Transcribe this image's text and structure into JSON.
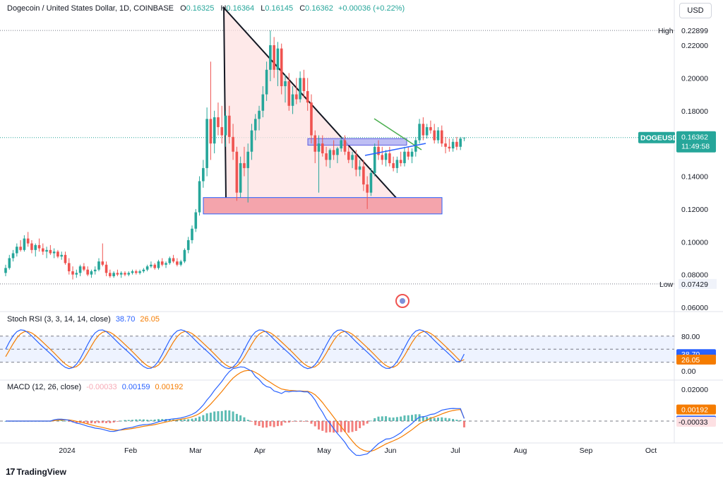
{
  "header": {
    "title": "Dogecoin / United States Dollar, 1D, COINBASE",
    "open_label": "O",
    "open": "0.16325",
    "high_label": "H",
    "high": "0.16364",
    "low_label": "L",
    "low": "0.16145",
    "close_label": "C",
    "close": "0.16362",
    "change": "+0.00036 (+0.22%)"
  },
  "currency_button": "USD",
  "brand": "TradingView",
  "brand_logo": "17",
  "chart_data": {
    "type": "candlestick",
    "symbol": "DOGEUSD",
    "exchange": "COINBASE",
    "interval": "1D",
    "x_labels": [
      "2024",
      "Feb",
      "Mar",
      "Apr",
      "May",
      "Jun",
      "Jul",
      "Aug",
      "Sep",
      "Oct"
    ],
    "price_ticks": [
      "0.22000",
      "0.20000",
      "0.18000",
      "0.14000",
      "0.12000",
      "0.10000",
      "0.08000",
      "0.06000"
    ],
    "ylim": [
      0.057,
      0.24
    ],
    "high": {
      "label": "High",
      "value": "0.22899",
      "num": 0.22899
    },
    "low": {
      "label": "Low",
      "value": "0.07429",
      "num": 0.07429
    },
    "last": {
      "symbol_label": "DOGEUSD",
      "price": "0.16362",
      "num": 0.16362,
      "countdown": "11:49:58",
      "color": "#26a69a"
    },
    "candles_ohlc": [
      [
        0.081,
        0.086,
        0.079,
        0.084
      ],
      [
        0.084,
        0.092,
        0.083,
        0.09
      ],
      [
        0.09,
        0.095,
        0.088,
        0.093
      ],
      [
        0.093,
        0.099,
        0.091,
        0.097
      ],
      [
        0.097,
        0.101,
        0.094,
        0.095
      ],
      [
        0.095,
        0.104,
        0.094,
        0.102
      ],
      [
        0.102,
        0.106,
        0.097,
        0.099
      ],
      [
        0.099,
        0.101,
        0.093,
        0.095
      ],
      [
        0.095,
        0.099,
        0.091,
        0.098
      ],
      [
        0.098,
        0.102,
        0.094,
        0.096
      ],
      [
        0.096,
        0.099,
        0.092,
        0.094
      ],
      [
        0.094,
        0.097,
        0.09,
        0.095
      ],
      [
        0.095,
        0.098,
        0.092,
        0.093
      ],
      [
        0.093,
        0.096,
        0.09,
        0.094
      ],
      [
        0.094,
        0.095,
        0.09,
        0.091
      ],
      [
        0.091,
        0.094,
        0.089,
        0.092
      ],
      [
        0.092,
        0.094,
        0.086,
        0.087
      ],
      [
        0.087,
        0.09,
        0.08,
        0.082
      ],
      [
        0.082,
        0.085,
        0.077,
        0.08
      ],
      [
        0.08,
        0.083,
        0.078,
        0.081
      ],
      [
        0.081,
        0.086,
        0.079,
        0.085
      ],
      [
        0.085,
        0.087,
        0.082,
        0.083
      ],
      [
        0.083,
        0.085,
        0.079,
        0.08
      ],
      [
        0.08,
        0.083,
        0.078,
        0.082
      ],
      [
        0.082,
        0.085,
        0.08,
        0.083
      ],
      [
        0.083,
        0.09,
        0.082,
        0.088
      ],
      [
        0.088,
        0.099,
        0.085,
        0.086
      ],
      [
        0.086,
        0.088,
        0.079,
        0.081
      ],
      [
        0.081,
        0.083,
        0.078,
        0.079
      ],
      [
        0.079,
        0.082,
        0.078,
        0.081
      ],
      [
        0.081,
        0.083,
        0.079,
        0.08
      ],
      [
        0.08,
        0.082,
        0.078,
        0.081
      ],
      [
        0.081,
        0.082,
        0.079,
        0.08
      ],
      [
        0.08,
        0.082,
        0.079,
        0.081
      ],
      [
        0.081,
        0.083,
        0.08,
        0.082
      ],
      [
        0.082,
        0.083,
        0.08,
        0.081
      ],
      [
        0.081,
        0.083,
        0.08,
        0.082
      ],
      [
        0.082,
        0.084,
        0.081,
        0.083
      ],
      [
        0.083,
        0.086,
        0.082,
        0.085
      ],
      [
        0.085,
        0.088,
        0.084,
        0.086
      ],
      [
        0.086,
        0.087,
        0.083,
        0.084
      ],
      [
        0.084,
        0.089,
        0.083,
        0.088
      ],
      [
        0.088,
        0.09,
        0.085,
        0.086
      ],
      [
        0.086,
        0.088,
        0.084,
        0.087
      ],
      [
        0.087,
        0.091,
        0.086,
        0.09
      ],
      [
        0.09,
        0.092,
        0.087,
        0.088
      ],
      [
        0.088,
        0.09,
        0.085,
        0.086
      ],
      [
        0.086,
        0.089,
        0.085,
        0.088
      ],
      [
        0.088,
        0.096,
        0.087,
        0.095
      ],
      [
        0.095,
        0.103,
        0.093,
        0.101
      ],
      [
        0.101,
        0.11,
        0.099,
        0.108
      ],
      [
        0.108,
        0.12,
        0.106,
        0.118
      ],
      [
        0.118,
        0.14,
        0.116,
        0.137
      ],
      [
        0.137,
        0.15,
        0.133,
        0.145
      ],
      [
        0.145,
        0.182,
        0.14,
        0.175
      ],
      [
        0.175,
        0.21,
        0.15,
        0.16
      ],
      [
        0.16,
        0.18,
        0.154,
        0.176
      ],
      [
        0.176,
        0.185,
        0.165,
        0.17
      ],
      [
        0.17,
        0.183,
        0.16,
        0.165
      ],
      [
        0.165,
        0.18,
        0.158,
        0.177
      ],
      [
        0.177,
        0.183,
        0.16,
        0.164
      ],
      [
        0.164,
        0.172,
        0.15,
        0.155
      ],
      [
        0.155,
        0.158,
        0.125,
        0.13
      ],
      [
        0.13,
        0.152,
        0.127,
        0.148
      ],
      [
        0.148,
        0.158,
        0.14,
        0.145
      ],
      [
        0.145,
        0.16,
        0.124,
        0.155
      ],
      [
        0.155,
        0.172,
        0.15,
        0.168
      ],
      [
        0.168,
        0.178,
        0.162,
        0.175
      ],
      [
        0.175,
        0.183,
        0.168,
        0.18
      ],
      [
        0.18,
        0.195,
        0.176,
        0.19
      ],
      [
        0.19,
        0.21,
        0.186,
        0.205
      ],
      [
        0.205,
        0.229,
        0.198,
        0.22
      ],
      [
        0.22,
        0.225,
        0.2,
        0.205
      ],
      [
        0.205,
        0.222,
        0.195,
        0.218
      ],
      [
        0.218,
        0.221,
        0.19,
        0.195
      ],
      [
        0.195,
        0.202,
        0.185,
        0.198
      ],
      [
        0.198,
        0.203,
        0.18,
        0.183
      ],
      [
        0.183,
        0.195,
        0.178,
        0.19
      ],
      [
        0.19,
        0.2,
        0.184,
        0.187
      ],
      [
        0.187,
        0.204,
        0.185,
        0.2
      ],
      [
        0.2,
        0.205,
        0.188,
        0.192
      ],
      [
        0.192,
        0.2,
        0.18,
        0.185
      ],
      [
        0.185,
        0.19,
        0.16,
        0.165
      ],
      [
        0.165,
        0.168,
        0.148,
        0.155
      ],
      [
        0.155,
        0.165,
        0.13,
        0.16
      ],
      [
        0.16,
        0.165,
        0.152,
        0.154
      ],
      [
        0.154,
        0.158,
        0.146,
        0.15
      ],
      [
        0.15,
        0.157,
        0.145,
        0.156
      ],
      [
        0.156,
        0.162,
        0.15,
        0.153
      ],
      [
        0.153,
        0.158,
        0.148,
        0.157
      ],
      [
        0.157,
        0.164,
        0.155,
        0.162
      ],
      [
        0.162,
        0.165,
        0.153,
        0.155
      ],
      [
        0.155,
        0.158,
        0.148,
        0.15
      ],
      [
        0.15,
        0.155,
        0.145,
        0.153
      ],
      [
        0.153,
        0.156,
        0.14,
        0.144
      ],
      [
        0.144,
        0.15,
        0.14,
        0.146
      ],
      [
        0.146,
        0.15,
        0.131,
        0.135
      ],
      [
        0.135,
        0.14,
        0.12,
        0.13
      ],
      [
        0.13,
        0.145,
        0.128,
        0.142
      ],
      [
        0.142,
        0.16,
        0.14,
        0.158
      ],
      [
        0.158,
        0.162,
        0.15,
        0.153
      ],
      [
        0.153,
        0.158,
        0.147,
        0.15
      ],
      [
        0.15,
        0.156,
        0.146,
        0.154
      ],
      [
        0.154,
        0.158,
        0.146,
        0.148
      ],
      [
        0.148,
        0.152,
        0.143,
        0.145
      ],
      [
        0.145,
        0.152,
        0.142,
        0.15
      ],
      [
        0.15,
        0.155,
        0.146,
        0.148
      ],
      [
        0.148,
        0.158,
        0.146,
        0.155
      ],
      [
        0.155,
        0.158,
        0.15,
        0.152
      ],
      [
        0.152,
        0.157,
        0.148,
        0.155
      ],
      [
        0.155,
        0.164,
        0.152,
        0.162
      ],
      [
        0.162,
        0.175,
        0.16,
        0.172
      ],
      [
        0.172,
        0.176,
        0.162,
        0.165
      ],
      [
        0.165,
        0.172,
        0.163,
        0.17
      ],
      [
        0.17,
        0.174,
        0.166,
        0.168
      ],
      [
        0.168,
        0.172,
        0.16,
        0.162
      ],
      [
        0.162,
        0.17,
        0.16,
        0.168
      ],
      [
        0.168,
        0.171,
        0.158,
        0.16
      ],
      [
        0.16,
        0.164,
        0.154,
        0.158
      ],
      [
        0.158,
        0.163,
        0.155,
        0.157
      ],
      [
        0.157,
        0.163,
        0.155,
        0.161
      ],
      [
        0.161,
        0.164,
        0.156,
        0.158
      ],
      [
        0.158,
        0.164,
        0.156,
        0.163
      ],
      [
        0.16325,
        0.16364,
        0.16145,
        0.16362
      ]
    ],
    "stoch_rsi": {
      "label": "Stoch RSI (3, 3, 14, 14, close)",
      "k_value": "38.70",
      "d_value": "26.05",
      "k_color": "#2962ff",
      "d_color": "#f57c00",
      "band_ticks": [
        "80.00",
        "0.00"
      ],
      "upper": 80,
      "middle": 50,
      "lower": 20,
      "ylim": [
        -5,
        100
      ]
    },
    "macd": {
      "label": "MACD (12, 26, close)",
      "histogram_value": "-0.00033",
      "macd_value": "0.00159",
      "signal_value": "0.00192",
      "macd_color": "#2962ff",
      "signal_color": "#f57c00",
      "ticks": [
        "0.02000"
      ],
      "ylim": [
        -0.0095,
        0.0225
      ]
    },
    "drawings": {
      "triangle_color": "#131722",
      "triangle_fill": "#fde2e2",
      "support_zone": {
        "low": 0.117,
        "high": 0.127,
        "color": "#f4a4ac"
      },
      "resistance_zone": {
        "low": 0.159,
        "high": 0.163,
        "color": "#b3b3f2"
      },
      "pennant_upper_color": "#4caf50",
      "pennant_lower_color": "#2962ff"
    },
    "colors": {
      "up": "#26a69a",
      "down": "#ef5350"
    },
    "grid": false,
    "legend": "top-left"
  }
}
